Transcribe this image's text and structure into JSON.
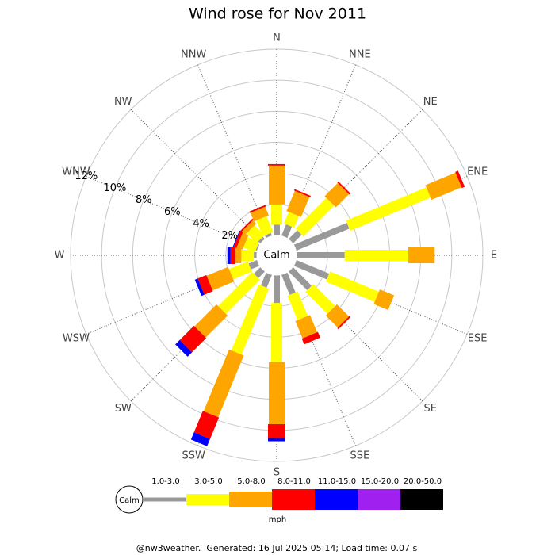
{
  "chart_data": {
    "type": "windrose",
    "title": "Wind rose for Nov 2011",
    "categories": [
      "N",
      "NNE",
      "NE",
      "ENE",
      "E",
      "ESE",
      "SE",
      "SSE",
      "S",
      "SSW",
      "SW",
      "WSW",
      "W",
      "WNW",
      "NW",
      "NNW"
    ],
    "calm_label": "Calm",
    "rlim": [
      0,
      12
    ],
    "rticks": [
      {
        "value": 2,
        "label": "2%"
      },
      {
        "value": 4,
        "label": "4%"
      },
      {
        "value": 6,
        "label": "6%"
      },
      {
        "value": 8,
        "label": "8%"
      },
      {
        "value": 10,
        "label": "10%"
      },
      {
        "value": 12,
        "label": "12%"
      }
    ],
    "series": [
      {
        "name": "1.0-3.0",
        "color": "#999999",
        "values": [
          0.7,
          0.8,
          0.8,
          3.7,
          3.1,
          2.3,
          1.7,
          1.4,
          1.8,
          0.9,
          0.6,
          0.6,
          0.2,
          0.1,
          0.2,
          0.2
        ]
      },
      {
        "name": "3.0-5.0",
        "color": "#ffff00",
        "values": [
          1.3,
          0.8,
          2.8,
          5.6,
          4.1,
          3.4,
          2.0,
          1.7,
          3.8,
          4.6,
          3.1,
          1.3,
          0.8,
          0.8,
          0.9,
          1.1
        ]
      },
      {
        "name": "5.0-8.0",
        "color": "#ffa500",
        "values": [
          2.5,
          1.4,
          1.2,
          2.1,
          1.7,
          1.0,
          1.1,
          1.2,
          4.0,
          4.3,
          2.0,
          1.5,
          0.4,
          0.4,
          0.3,
          0.6
        ]
      },
      {
        "name": "8.0-11.0",
        "color": "#ff0000",
        "values": [
          0.1,
          0.1,
          0.1,
          0.2,
          0,
          0,
          0.1,
          0.4,
          0.9,
          1.5,
          1.3,
          0.6,
          0.3,
          0.2,
          0.1,
          0.1
        ]
      },
      {
        "name": "11.0-15.0",
        "color": "#0000ff",
        "values": [
          0,
          0,
          0,
          0,
          0,
          0,
          0,
          0,
          0.2,
          0.5,
          0.4,
          0.2,
          0.2,
          0.05,
          0,
          0
        ]
      },
      {
        "name": "15.0-20.0",
        "color": "#a020f0",
        "values": [
          0,
          0,
          0,
          0,
          0,
          0,
          0,
          0,
          0,
          0,
          0,
          0,
          0,
          0,
          0,
          0
        ]
      },
      {
        "name": "20.0-50.0",
        "color": "#000000",
        "values": [
          0,
          0,
          0,
          0,
          0,
          0,
          0,
          0,
          0,
          0,
          0,
          0,
          0,
          0,
          0,
          0
        ]
      }
    ],
    "legend_unit": "mph",
    "footer": "@nw3weather.  Generated: 16 Jul 2025 05:14; Load time: 0.07 s"
  }
}
